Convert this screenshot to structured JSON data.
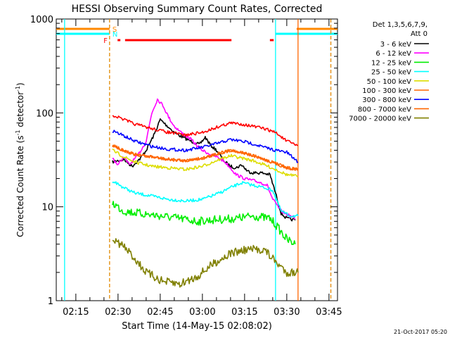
{
  "chart_data": {
    "type": "line",
    "title": "HESSI Observing Summary Count Rates, Corrected",
    "xlabel": "Start Time (14-May-15 02:08:02)",
    "ylabel_main": "Corrected Count Rate (s",
    "ylabel_sup1": "-1",
    "ylabel_mid": " detector",
    "ylabel_sup2": "-1",
    "ylabel_end": ")",
    "y_scale": "log",
    "ylim": [
      1,
      1000
    ],
    "y_ticks": [
      {
        "value": 1,
        "label": "1"
      },
      {
        "value": 10,
        "label": "10"
      },
      {
        "value": 100,
        "label": "100"
      },
      {
        "value": 1000,
        "label": "1000"
      }
    ],
    "xlim": [
      "02:08:02",
      "03:48:02"
    ],
    "x_ticks": [
      {
        "value": "02:15",
        "label": "02:15"
      },
      {
        "value": "02:30",
        "label": "02:30"
      },
      {
        "value": "02:45",
        "label": "02:45"
      },
      {
        "value": "03:00",
        "label": "03:00"
      },
      {
        "value": "03:15",
        "label": "03:15"
      },
      {
        "value": "03:30",
        "label": "03:30"
      },
      {
        "value": "03:45",
        "label": "03:45"
      }
    ],
    "legend": {
      "placement": "right",
      "header_line1": "Det 1,3,5,6,7,9,",
      "header_line2": "Att 0",
      "items": [
        {
          "label": "3 - 6 keV",
          "color": "#000000"
        },
        {
          "label": "6 - 12 keV",
          "color": "#ff00ff"
        },
        {
          "label": "12 - 25 keV",
          "color": "#00ee00"
        },
        {
          "label": "25 - 50 keV",
          "color": "#00ffff"
        },
        {
          "label": "50 - 100 keV",
          "color": "#dddd00"
        },
        {
          "label": "100 - 300 keV",
          "color": "#ff6600"
        },
        {
          "label": "300 - 800 keV",
          "color": "#0000ff"
        },
        {
          "label": "800 - 7000 keV",
          "color": "#ff6600"
        },
        {
          "label": "7000 - 20000 keV",
          "color": "#808000"
        }
      ]
    },
    "flags": {
      "S": {
        "label": "S",
        "color": "#ff8800",
        "intervals": [
          [
            "02:08:02",
            "02:27:00"
          ],
          [
            "03:33:30",
            "03:48:02"
          ]
        ]
      },
      "N": {
        "label": "N",
        "color": "#00ffff",
        "intervals": [
          [
            "02:08:02",
            "02:27:00"
          ],
          [
            "03:26:00",
            "03:48:02"
          ]
        ]
      },
      "F": {
        "label": "F",
        "color": "#ff0000",
        "intervals": [
          [
            "02:29:50",
            "02:30:50"
          ],
          [
            "02:32:30",
            "03:10:20"
          ],
          [
            "03:24:00",
            "03:25:20"
          ]
        ]
      }
    },
    "markers": [
      {
        "time": "02:11:00",
        "color": "#00ffff",
        "style": "solid"
      },
      {
        "time": "02:27:00",
        "color": "#00ffff",
        "style": "dashed"
      },
      {
        "time": "02:27:00",
        "color": "#ff8800",
        "style": "dashed"
      },
      {
        "time": "03:26:00",
        "color": "#00ffff",
        "style": "solid"
      },
      {
        "time": "03:34:00",
        "color": "#ff6600",
        "style": "solid"
      },
      {
        "time": "03:45:40",
        "color": "#00ffff",
        "style": "dashed"
      },
      {
        "time": "03:45:40",
        "color": "#ff8800",
        "style": "dashed"
      }
    ],
    "series": [
      {
        "name": "3 - 6 keV",
        "color": "#000000",
        "points": [
          [
            "02:28",
            30
          ],
          [
            "02:32",
            32
          ],
          [
            "02:35",
            27
          ],
          [
            "02:38",
            33
          ],
          [
            "02:40",
            40
          ],
          [
            "02:43",
            60
          ],
          [
            "02:45",
            85
          ],
          [
            "02:47",
            75
          ],
          [
            "02:50",
            62
          ],
          [
            "02:53",
            55
          ],
          [
            "02:56",
            50
          ],
          [
            "02:59",
            46
          ],
          [
            "03:01",
            55
          ],
          [
            "03:03",
            45
          ],
          [
            "03:05",
            40
          ],
          [
            "03:08",
            30
          ],
          [
            "03:10",
            27
          ],
          [
            "03:12",
            26
          ],
          [
            "03:14",
            28
          ],
          [
            "03:16",
            24
          ],
          [
            "03:18",
            23
          ],
          [
            "03:21",
            23
          ],
          [
            "03:24",
            22
          ],
          [
            "03:26",
            14
          ],
          [
            "03:28",
            8.5
          ],
          [
            "03:30",
            7.5
          ],
          [
            "03:33",
            7.2
          ]
        ]
      },
      {
        "name": "6 - 12 keV",
        "color": "#ff00ff",
        "points": [
          [
            "02:28",
            33
          ],
          [
            "02:30",
            28
          ],
          [
            "02:32",
            34
          ],
          [
            "02:34",
            28
          ],
          [
            "02:37",
            35
          ],
          [
            "02:40",
            50
          ],
          [
            "02:42",
            100
          ],
          [
            "02:44",
            140
          ],
          [
            "02:46",
            120
          ],
          [
            "02:48",
            90
          ],
          [
            "02:50",
            72
          ],
          [
            "02:53",
            60
          ],
          [
            "02:56",
            52
          ],
          [
            "02:58",
            45
          ],
          [
            "03:00",
            40
          ],
          [
            "03:03",
            36
          ],
          [
            "03:06",
            33
          ],
          [
            "03:08",
            30
          ],
          [
            "03:10",
            26
          ],
          [
            "03:12",
            22
          ],
          [
            "03:15",
            20
          ],
          [
            "03:18",
            19
          ],
          [
            "03:21",
            18
          ],
          [
            "03:23",
            17
          ],
          [
            "03:25",
            12
          ],
          [
            "03:28",
            9
          ],
          [
            "03:31",
            8
          ],
          [
            "03:33",
            7.5
          ]
        ]
      },
      {
        "name": "12 - 25 keV",
        "color": "#00ee00",
        "points": [
          [
            "02:28",
            11
          ],
          [
            "02:32",
            9
          ],
          [
            "02:38",
            8.5
          ],
          [
            "02:45",
            8
          ],
          [
            "02:52",
            7.5
          ],
          [
            "02:58",
            7
          ],
          [
            "03:05",
            7.3
          ],
          [
            "03:12",
            7.5
          ],
          [
            "03:18",
            8
          ],
          [
            "03:24",
            7.5
          ],
          [
            "03:26",
            6.5
          ],
          [
            "03:30",
            4.5
          ],
          [
            "03:33",
            4
          ]
        ]
      },
      {
        "name": "25 - 50 keV",
        "color": "#00ffff",
        "points": [
          [
            "02:28",
            19
          ],
          [
            "02:32",
            16
          ],
          [
            "02:36",
            14
          ],
          [
            "02:42",
            13
          ],
          [
            "02:48",
            12
          ],
          [
            "02:54",
            11.5
          ],
          [
            "03:00",
            12
          ],
          [
            "03:06",
            14
          ],
          [
            "03:10",
            16
          ],
          [
            "03:14",
            18
          ],
          [
            "03:18",
            17
          ],
          [
            "03:22",
            16
          ],
          [
            "03:25",
            15
          ],
          [
            "03:28",
            9
          ],
          [
            "03:31",
            8
          ],
          [
            "03:34",
            8
          ]
        ]
      },
      {
        "name": "50 - 100 keV",
        "color": "#dddd00",
        "points": [
          [
            "02:28",
            40
          ],
          [
            "02:32",
            34
          ],
          [
            "02:36",
            30
          ],
          [
            "02:42",
            27
          ],
          [
            "02:48",
            26
          ],
          [
            "02:54",
            25
          ],
          [
            "03:00",
            27
          ],
          [
            "03:06",
            32
          ],
          [
            "03:10",
            35
          ],
          [
            "03:14",
            33
          ],
          [
            "03:18",
            31
          ],
          [
            "03:22",
            28
          ],
          [
            "03:26",
            25
          ],
          [
            "03:30",
            22
          ],
          [
            "03:34",
            21
          ]
        ]
      },
      {
        "name": "100 - 300 keV",
        "color": "#ff6600",
        "points": [
          [
            "02:28",
            45
          ],
          [
            "02:32",
            40
          ],
          [
            "02:36",
            36
          ],
          [
            "02:42",
            34
          ],
          [
            "02:48",
            32
          ],
          [
            "02:54",
            31
          ],
          [
            "03:00",
            33
          ],
          [
            "03:06",
            37
          ],
          [
            "03:10",
            40
          ],
          [
            "03:14",
            38
          ],
          [
            "03:18",
            35
          ],
          [
            "03:22",
            32
          ],
          [
            "03:26",
            29
          ],
          [
            "03:30",
            26
          ],
          [
            "03:34",
            25
          ]
        ]
      },
      {
        "name": "300 - 800 keV",
        "color": "#0000ff",
        "points": [
          [
            "02:28",
            65
          ],
          [
            "02:32",
            57
          ],
          [
            "02:36",
            50
          ],
          [
            "02:42",
            44
          ],
          [
            "02:48",
            41
          ],
          [
            "02:54",
            40
          ],
          [
            "03:00",
            43
          ],
          [
            "03:06",
            48
          ],
          [
            "03:10",
            52
          ],
          [
            "03:14",
            50
          ],
          [
            "03:18",
            47
          ],
          [
            "03:22",
            43
          ],
          [
            "03:26",
            40
          ],
          [
            "03:30",
            38
          ],
          [
            "03:34",
            30
          ]
        ]
      },
      {
        "name": "800 - 7000 keV",
        "color": "#ff6600",
        "points": [
          [
            "02:28",
            45
          ],
          [
            "02:32",
            40
          ],
          [
            "02:36",
            36
          ],
          [
            "02:42",
            34
          ],
          [
            "02:48",
            32
          ],
          [
            "02:54",
            31
          ],
          [
            "03:00",
            33
          ],
          [
            "03:06",
            37
          ],
          [
            "03:10",
            40
          ],
          [
            "03:14",
            38
          ],
          [
            "03:18",
            35
          ],
          [
            "03:22",
            32
          ],
          [
            "03:26",
            29
          ],
          [
            "03:30",
            26
          ],
          [
            "03:34",
            25
          ]
        ]
      },
      {
        "name": "7000 - 20000 keV",
        "color": "#808000",
        "points": [
          [
            "02:28",
            4.5
          ],
          [
            "02:32",
            3.8
          ],
          [
            "02:36",
            2.8
          ],
          [
            "02:40",
            2
          ],
          [
            "02:46",
            1.6
          ],
          [
            "02:52",
            1.5
          ],
          [
            "02:58",
            1.8
          ],
          [
            "03:04",
            2.5
          ],
          [
            "03:10",
            3.2
          ],
          [
            "03:16",
            3.5
          ],
          [
            "03:22",
            3.5
          ],
          [
            "03:26",
            2.6
          ],
          [
            "03:30",
            2
          ],
          [
            "03:34",
            2
          ]
        ]
      },
      {
        "name": "",
        "color": "#ff0000",
        "points": [
          [
            "02:28",
            95
          ],
          [
            "02:32",
            85
          ],
          [
            "02:36",
            76
          ],
          [
            "02:42",
            68
          ],
          [
            "02:48",
            62
          ],
          [
            "02:54",
            58
          ],
          [
            "03:00",
            62
          ],
          [
            "03:06",
            72
          ],
          [
            "03:10",
            78
          ],
          [
            "03:14",
            76
          ],
          [
            "03:18",
            72
          ],
          [
            "03:22",
            68
          ],
          [
            "03:26",
            62
          ],
          [
            "03:30",
            50
          ],
          [
            "03:34",
            45
          ]
        ]
      }
    ]
  },
  "footer": {
    "date": "21-Oct-2017 05:20"
  }
}
